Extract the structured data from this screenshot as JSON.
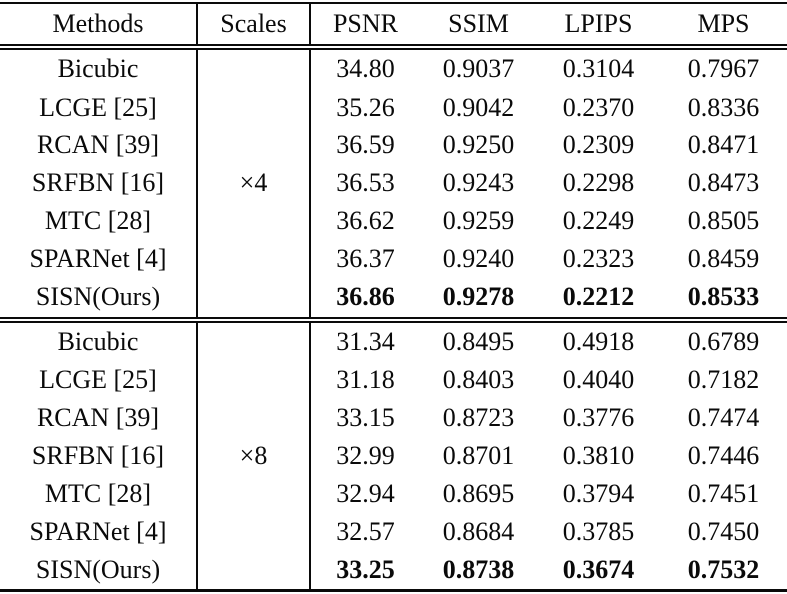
{
  "table": {
    "columns": [
      {
        "label": "Methods"
      },
      {
        "label": "Scales"
      },
      {
        "label": "PSNR"
      },
      {
        "label": "SSIM"
      },
      {
        "label": "LPIPS"
      },
      {
        "label": "MPS"
      }
    ],
    "blocks": [
      {
        "scale": "×4",
        "rows": [
          {
            "method": "Bicubic",
            "psnr": "34.80",
            "ssim": "0.9037",
            "lpips": "0.3104",
            "mps": "0.7967",
            "bold": false
          },
          {
            "method": "LCGE [25]",
            "psnr": "35.26",
            "ssim": "0.9042",
            "lpips": "0.2370",
            "mps": "0.8336",
            "bold": false
          },
          {
            "method": "RCAN [39]",
            "psnr": "36.59",
            "ssim": "0.9250",
            "lpips": "0.2309",
            "mps": "0.8471",
            "bold": false
          },
          {
            "method": "SRFBN [16]",
            "psnr": "36.53",
            "ssim": "0.9243",
            "lpips": "0.2298",
            "mps": "0.8473",
            "bold": false
          },
          {
            "method": "MTC [28]",
            "psnr": "36.62",
            "ssim": "0.9259",
            "lpips": "0.2249",
            "mps": "0.8505",
            "bold": false
          },
          {
            "method": "SPARNet [4]",
            "psnr": "36.37",
            "ssim": "0.9240",
            "lpips": "0.2323",
            "mps": "0.8459",
            "bold": false
          },
          {
            "method": "SISN(Ours)",
            "psnr": "36.86",
            "ssim": "0.9278",
            "lpips": "0.2212",
            "mps": "0.8533",
            "bold": true
          }
        ]
      },
      {
        "scale": "×8",
        "rows": [
          {
            "method": "Bicubic",
            "psnr": "31.34",
            "ssim": "0.8495",
            "lpips": "0.4918",
            "mps": "0.6789",
            "bold": false
          },
          {
            "method": "LCGE [25]",
            "psnr": "31.18",
            "ssim": "0.8403",
            "lpips": "0.4040",
            "mps": "0.7182",
            "bold": false
          },
          {
            "method": "RCAN [39]",
            "psnr": "33.15",
            "ssim": "0.8723",
            "lpips": "0.3776",
            "mps": "0.7474",
            "bold": false
          },
          {
            "method": "SRFBN [16]",
            "psnr": "32.99",
            "ssim": "0.8701",
            "lpips": "0.3810",
            "mps": "0.7446",
            "bold": false
          },
          {
            "method": "MTC [28]",
            "psnr": "32.94",
            "ssim": "0.8695",
            "lpips": "0.3794",
            "mps": "0.7451",
            "bold": false
          },
          {
            "method": "SPARNet [4]",
            "psnr": "32.57",
            "ssim": "0.8684",
            "lpips": "0.3785",
            "mps": "0.7450",
            "bold": false
          },
          {
            "method": "SISN(Ours)",
            "psnr": "33.25",
            "ssim": "0.8738",
            "lpips": "0.3674",
            "mps": "0.7532",
            "bold": true
          }
        ]
      }
    ],
    "colors": {
      "text": "#0a0a0a",
      "background": "#ffffff",
      "rule": "#0a0a0a"
    }
  }
}
